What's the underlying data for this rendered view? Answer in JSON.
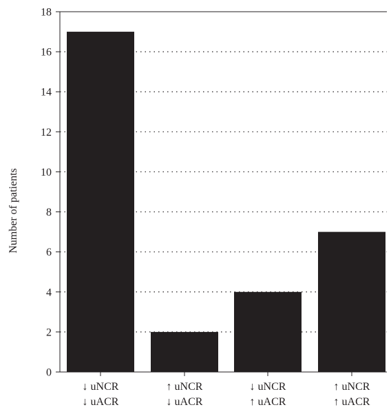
{
  "chart_data": {
    "type": "bar",
    "title": "",
    "xlabel": "",
    "ylabel": "Number of patients",
    "ylim": [
      0,
      18
    ],
    "yticks": [
      0,
      2,
      4,
      6,
      8,
      10,
      12,
      14,
      16,
      18
    ],
    "categories": [
      [
        "↓ uNCR",
        "↓ uACR"
      ],
      [
        "↑ uNCR",
        "↓ uACR"
      ],
      [
        "↓ uNCR",
        "↑ uACR"
      ],
      [
        "↑ uNCR",
        "↑ uACR"
      ]
    ],
    "values": [
      17,
      2,
      4,
      7
    ],
    "grid": "horizontal dotted",
    "bar_color": "#231f20"
  }
}
